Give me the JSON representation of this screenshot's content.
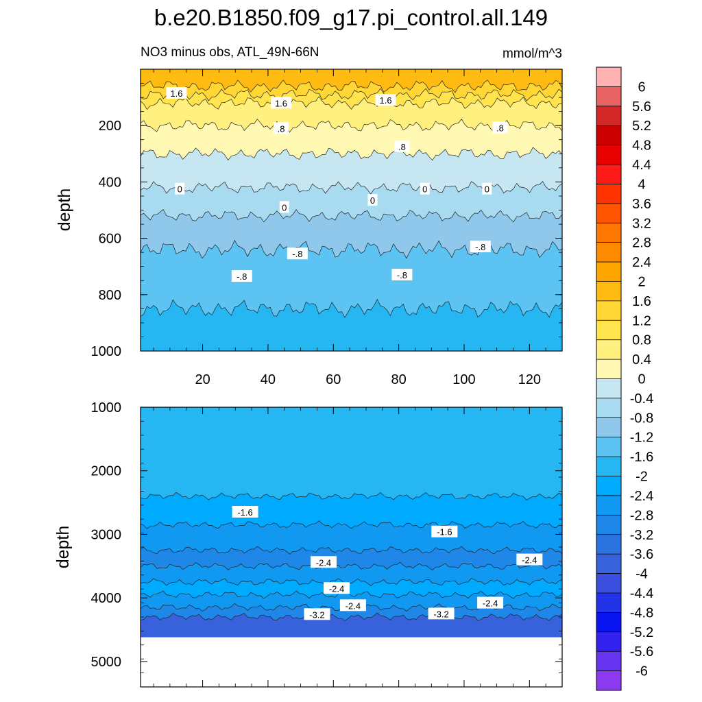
{
  "chart_data": [
    {
      "type": "contour",
      "title": "b.e20.B1850.f09_g17.pi_control.all.149",
      "subtitle_left": "NO3 minus obs, ATL_49N-66N",
      "subtitle_right": "mmol/m^3",
      "xlabel": "",
      "ylabel": "depth",
      "xlim": [
        1,
        130
      ],
      "ylim": [
        1000,
        0
      ],
      "xticks": [
        "20",
        "40",
        "60",
        "80",
        "100",
        "120"
      ],
      "yticks": [
        "200",
        "400",
        "600",
        "800",
        "1000"
      ],
      "layers": [
        {
          "depth": 1000,
          "value": -1.8
        },
        {
          "depth": 850,
          "value": -1.4
        },
        {
          "depth": 640,
          "value": -1.0
        },
        {
          "depth": 520,
          "value": -0.6
        },
        {
          "depth": 420,
          "value": -0.2
        },
        {
          "depth": 300,
          "value": 0.2
        },
        {
          "depth": 200,
          "value": 0.6
        },
        {
          "depth": 120,
          "value": 1.0
        },
        {
          "depth": 90,
          "value": 1.4
        },
        {
          "depth": 60,
          "value": 1.8
        }
      ],
      "contour_labels": [
        {
          "text": "1.6",
          "x": 12,
          "y": 85
        },
        {
          "text": "1.6",
          "x": 44,
          "y": 120
        },
        {
          "text": "1.6",
          "x": 76,
          "y": 110
        },
        {
          "text": ".8",
          "x": 44,
          "y": 210
        },
        {
          "text": ".8",
          "x": 81,
          "y": 275
        },
        {
          "text": ".8",
          "x": 111,
          "y": 208
        },
        {
          "text": "0",
          "x": 13,
          "y": 425
        },
        {
          "text": "0",
          "x": 45,
          "y": 490
        },
        {
          "text": "0",
          "x": 72,
          "y": 465
        },
        {
          "text": "0",
          "x": 88,
          "y": 425
        },
        {
          "text": "0",
          "x": 107,
          "y": 425
        },
        {
          "text": "-.8",
          "x": 32,
          "y": 735
        },
        {
          "text": "-.8",
          "x": 49,
          "y": 655
        },
        {
          "text": "-.8",
          "x": 81,
          "y": 730
        },
        {
          "text": "-.8",
          "x": 105,
          "y": 630
        }
      ]
    },
    {
      "type": "contour",
      "xlabel": "",
      "ylabel": "depth",
      "xlim": [
        1,
        130
      ],
      "ylim": [
        5400,
        1000
      ],
      "yticks": [
        "1000",
        "2000",
        "3000",
        "4000",
        "5000"
      ],
      "data_bottom_depth": 4620,
      "layers": [
        {
          "depth": 4620,
          "value": -3.8
        },
        {
          "depth": 4300,
          "value": -3.0
        },
        {
          "depth": 4150,
          "value": -2.6
        },
        {
          "depth": 3950,
          "value": -2.2
        },
        {
          "depth": 3750,
          "value": -2.6
        },
        {
          "depth": 3500,
          "value": -3.0
        },
        {
          "depth": 3250,
          "value": -2.6
        },
        {
          "depth": 2850,
          "value": -2.2
        },
        {
          "depth": 2400,
          "value": -1.8
        }
      ],
      "contour_labels": [
        {
          "text": "-1.6",
          "x": 33,
          "y": 2650
        },
        {
          "text": "-1.6",
          "x": 94,
          "y": 2960
        },
        {
          "text": "-2.4",
          "x": 57,
          "y": 3440
        },
        {
          "text": "-2.4",
          "x": 120,
          "y": 3400
        },
        {
          "text": "-2.4",
          "x": 61,
          "y": 3850
        },
        {
          "text": "-2.4",
          "x": 66,
          "y": 4120
        },
        {
          "text": "-2.4",
          "x": 108,
          "y": 4080
        },
        {
          "text": "-3.2",
          "x": 55,
          "y": 4260
        },
        {
          "text": "-3.2",
          "x": 93,
          "y": 4250
        }
      ]
    }
  ],
  "colorbar": {
    "labels": [
      "6",
      "5.6",
      "5.2",
      "4.8",
      "4.4",
      "4",
      "3.6",
      "3.2",
      "2.8",
      "2.4",
      "2",
      "1.6",
      "1.2",
      "0.8",
      "0.4",
      "0",
      "-0.4",
      "-0.8",
      "-1.2",
      "-1.6",
      "-2",
      "-2.4",
      "-2.8",
      "-3.2",
      "-3.6",
      "-4",
      "-4.4",
      "-4.8",
      "-5.2",
      "-5.6",
      "-6"
    ],
    "colors": [
      "#ffb3b3",
      "#e86464",
      "#d42828",
      "#cc0000",
      "#e60000",
      "#ff1a1a",
      "#ff3300",
      "#ff5500",
      "#ff7700",
      "#ff8c00",
      "#ffa500",
      "#ffbb11",
      "#ffd633",
      "#ffe44d",
      "#fff080",
      "#fff9b3",
      "#c6e6f2",
      "#a8daf0",
      "#8fc8ea",
      "#5cc3f3",
      "#26b6f2",
      "#00aaff",
      "#1199f2",
      "#1e87e8",
      "#2b74e0",
      "#3862dc",
      "#3a4ddc",
      "#2233e8",
      "#0a14f0",
      "#3322ee",
      "#6633ee",
      "#8c3af0"
    ]
  }
}
